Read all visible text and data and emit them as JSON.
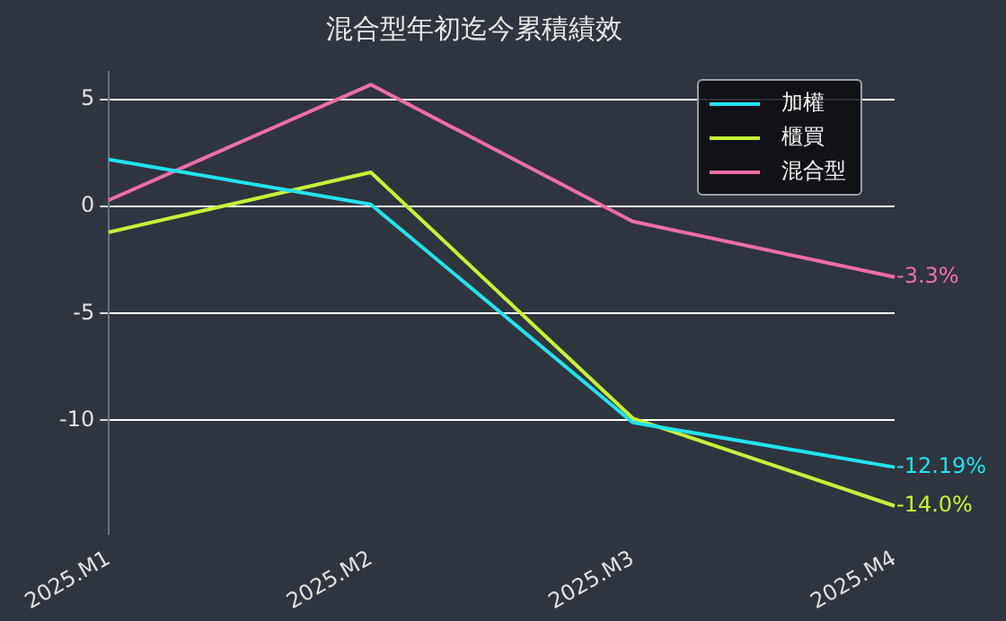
{
  "chart_data": {
    "type": "line",
    "title": "混合型年初迄今累積績效",
    "categories": [
      "2025.M1",
      "2025.M2",
      "2025.M3",
      "2025.M4"
    ],
    "series": [
      {
        "name": "加權",
        "color": "#22e3ee",
        "values": [
          2.2,
          0.1,
          -10.1,
          -12.19
        ],
        "value_labels": [
          null,
          null,
          null,
          "-12.19%"
        ]
      },
      {
        "name": "櫃買",
        "color": "#c6f23a",
        "values": [
          -1.2,
          1.6,
          -9.9,
          -14.0
        ],
        "value_labels": [
          null,
          null,
          null,
          "-14.0%"
        ]
      },
      {
        "name": "混合型",
        "color": "#ee6ea6",
        "values": [
          0.3,
          5.7,
          -0.7,
          -3.3
        ],
        "value_labels": [
          null,
          null,
          null,
          "-3.3%"
        ]
      }
    ],
    "ylim": [
      -15.3,
      6.3
    ],
    "yticks": [
      -10,
      -5,
      0,
      5
    ],
    "grid": "y",
    "legend": "top right",
    "marker": "none",
    "line_style": "solid"
  }
}
